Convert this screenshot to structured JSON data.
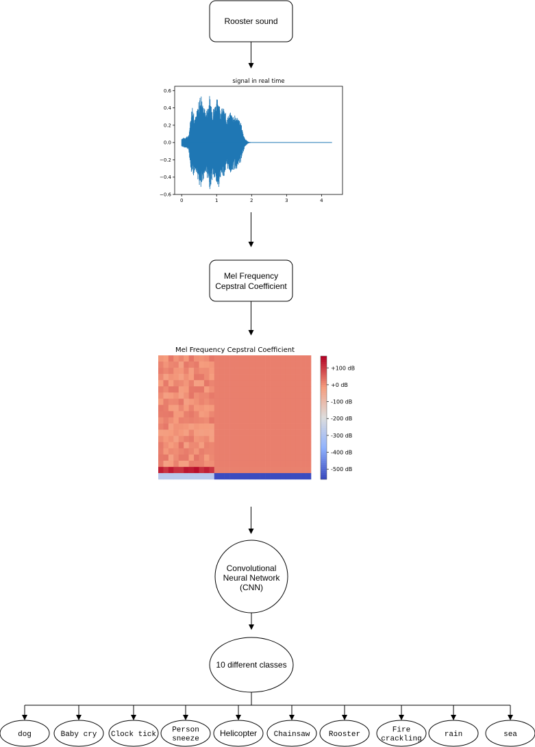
{
  "nodes": {
    "rooster_sound": "Rooster sound",
    "mfcc_lines": [
      "Mel Frequency",
      "Cepstral Coefficient"
    ],
    "cnn_lines": [
      "Convolutional",
      "Neural Network",
      "(CNN)"
    ],
    "classes_summary": "10 different classes"
  },
  "classes": [
    [
      "dog"
    ],
    [
      "Baby cry"
    ],
    [
      "Clock tick"
    ],
    [
      "Person",
      "sneeze"
    ],
    [
      "Helicopter"
    ],
    [
      "Chainsaw"
    ],
    [
      "Rooster"
    ],
    [
      "Fire",
      "crackling"
    ],
    [
      "rain"
    ],
    [
      "sea"
    ]
  ],
  "class_fonts": [
    "mono",
    "mono",
    "mono",
    "mono",
    "sans",
    "mono",
    "mono",
    "mono",
    "mono",
    "mono"
  ],
  "chart_data": [
    {
      "type": "line",
      "title": "signal in real time",
      "xlabel": "",
      "ylabel": "",
      "xlim": [
        -0.2,
        4.6
      ],
      "ylim": [
        -0.6,
        0.65
      ],
      "xticks": [
        "0",
        "1",
        "2",
        "3",
        "4"
      ],
      "yticks": [
        "0.6",
        "0.4",
        "0.2",
        "0.0",
        "−0.2",
        "−0.4",
        "−0.6"
      ],
      "series": [
        {
          "color": "#1f77b4",
          "envelope_time": [
            0.0,
            0.1,
            0.2,
            0.3,
            0.4,
            0.5,
            0.55,
            0.6,
            0.7,
            0.8,
            0.9,
            1.0,
            1.05,
            1.1,
            1.2,
            1.3,
            1.4,
            1.5,
            1.6,
            1.7,
            1.8,
            1.9,
            2.0,
            4.3
          ],
          "envelope_amp": [
            0.05,
            0.06,
            0.08,
            0.45,
            0.3,
            0.5,
            0.58,
            0.45,
            0.35,
            0.55,
            0.4,
            0.5,
            0.55,
            0.4,
            0.4,
            0.3,
            0.35,
            0.32,
            0.3,
            0.22,
            0.05,
            0.01,
            0.0,
            0.0
          ]
        }
      ]
    },
    {
      "type": "heatmap",
      "title": "Mel Frequency Cepstral Coefficient",
      "colorbar_ticks": [
        "+100 dB",
        "+0 dB",
        "-100 dB",
        "-200 dB",
        "-300 dB",
        "-400 dB",
        "-500 dB"
      ],
      "colormap": "coolwarm",
      "range_db": [
        -560,
        170
      ]
    }
  ]
}
